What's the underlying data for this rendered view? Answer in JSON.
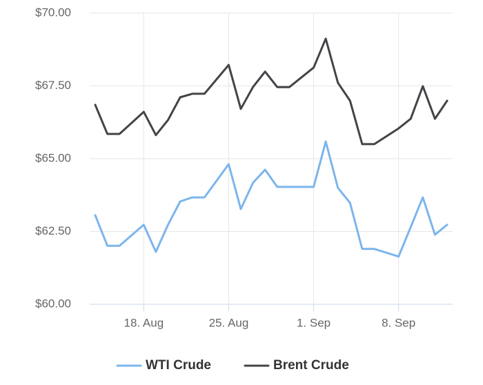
{
  "chart_data": {
    "type": "line",
    "x": [
      "14. Aug",
      "15. Aug",
      "16. Aug",
      "18. Aug",
      "19. Aug",
      "20. Aug",
      "21. Aug",
      "22. Aug",
      "23. Aug",
      "25. Aug",
      "26. Aug",
      "27. Aug",
      "28. Aug",
      "29. Aug",
      "30. Aug",
      "1. Sep",
      "2. Sep",
      "3. Sep",
      "4. Sep",
      "5. Sep",
      "6. Sep",
      "8. Sep",
      "9. Sep",
      "10. Sep",
      "11. Sep",
      "12. Sep"
    ],
    "series": [
      {
        "name": "WTI Crude",
        "color": "#7cb5ec",
        "values": [
          63.06,
          62.01,
          62.01,
          62.73,
          61.8,
          62.73,
          63.53,
          63.67,
          63.67,
          64.81,
          63.27,
          64.17,
          64.62,
          64.03,
          64.03,
          64.03,
          65.59,
          64.0,
          63.48,
          61.9,
          61.9,
          61.64,
          62.65,
          63.67,
          62.39,
          62.73
        ]
      },
      {
        "name": "Brent Crude",
        "color": "#434348",
        "values": [
          66.85,
          65.85,
          65.85,
          66.61,
          65.81,
          66.33,
          67.11,
          67.23,
          67.23,
          68.22,
          66.71,
          67.46,
          67.99,
          67.46,
          67.46,
          68.13,
          69.12,
          67.61,
          66.99,
          65.5,
          65.5,
          66.04,
          66.37,
          67.49,
          66.37,
          66.99
        ]
      }
    ],
    "xlim": [
      "14. Aug",
      "12. Sep"
    ],
    "xticks": [
      "18. Aug",
      "25. Aug",
      "1. Sep",
      "8. Sep"
    ],
    "ylim": [
      60,
      70
    ],
    "yticks": [
      {
        "value": 60,
        "label": "$60.00"
      },
      {
        "value": 62.5,
        "label": "$62.50"
      },
      {
        "value": 65,
        "label": "$65.00"
      },
      {
        "value": 67.5,
        "label": "$67.50"
      },
      {
        "value": 70,
        "label": "$70.00"
      }
    ],
    "grid": true,
    "legend": "bottom"
  }
}
